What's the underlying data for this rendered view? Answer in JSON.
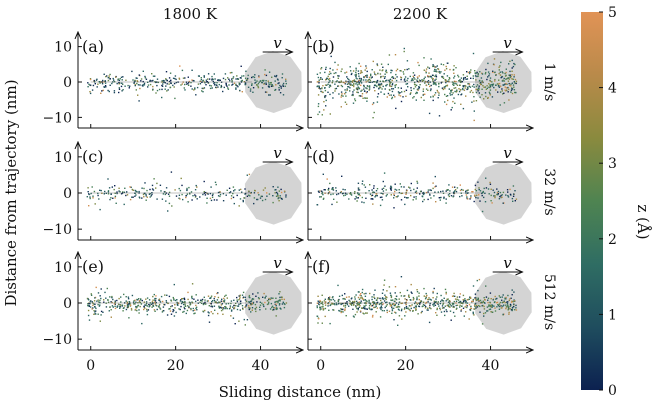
{
  "chart_data": {
    "type": "scatter",
    "layout": "3x2 grid",
    "columns": [
      "1800 K",
      "2200 K"
    ],
    "rows": [
      "1 m/s",
      "32 m/s",
      "512 m/s"
    ],
    "xlabel": "Sliding distance (nm)",
    "ylabel": "Distance from trajectory (nm)",
    "xlim": [
      -3,
      50
    ],
    "ylim": [
      -13,
      13
    ],
    "xticks": [
      "0",
      "20",
      "40"
    ],
    "yticks": [
      "10",
      "0",
      "−10"
    ],
    "velocity_symbol": "v",
    "tip_center_x": 43,
    "tip_radius": 7,
    "colorbar": {
      "label": "z (Å)",
      "ticks": [
        "0",
        "1",
        "2",
        "3",
        "4",
        "5"
      ],
      "range": [
        0,
        5
      ],
      "colors": [
        "#0c2150",
        "#1f4d5e",
        "#2f6d63",
        "#4f8451",
        "#8a8a3e",
        "#b98a4a",
        "#e19356"
      ]
    },
    "panels": [
      {
        "label": "(a)",
        "row": 0,
        "col": 0,
        "spread": 2.2,
        "density": 420,
        "zmean": 1.2
      },
      {
        "label": "(b)",
        "row": 0,
        "col": 1,
        "spread": 4.2,
        "density": 900,
        "zmean": 1.9
      },
      {
        "label": "(c)",
        "row": 1,
        "col": 0,
        "spread": 2.0,
        "density": 260,
        "zmean": 1.4
      },
      {
        "label": "(d)",
        "row": 1,
        "col": 1,
        "spread": 2.2,
        "density": 330,
        "zmean": 1.3
      },
      {
        "label": "(e)",
        "row": 2,
        "col": 0,
        "spread": 2.3,
        "density": 560,
        "zmean": 1.8
      },
      {
        "label": "(f)",
        "row": 2,
        "col": 1,
        "spread": 2.5,
        "density": 760,
        "zmean": 2.0
      }
    ]
  }
}
